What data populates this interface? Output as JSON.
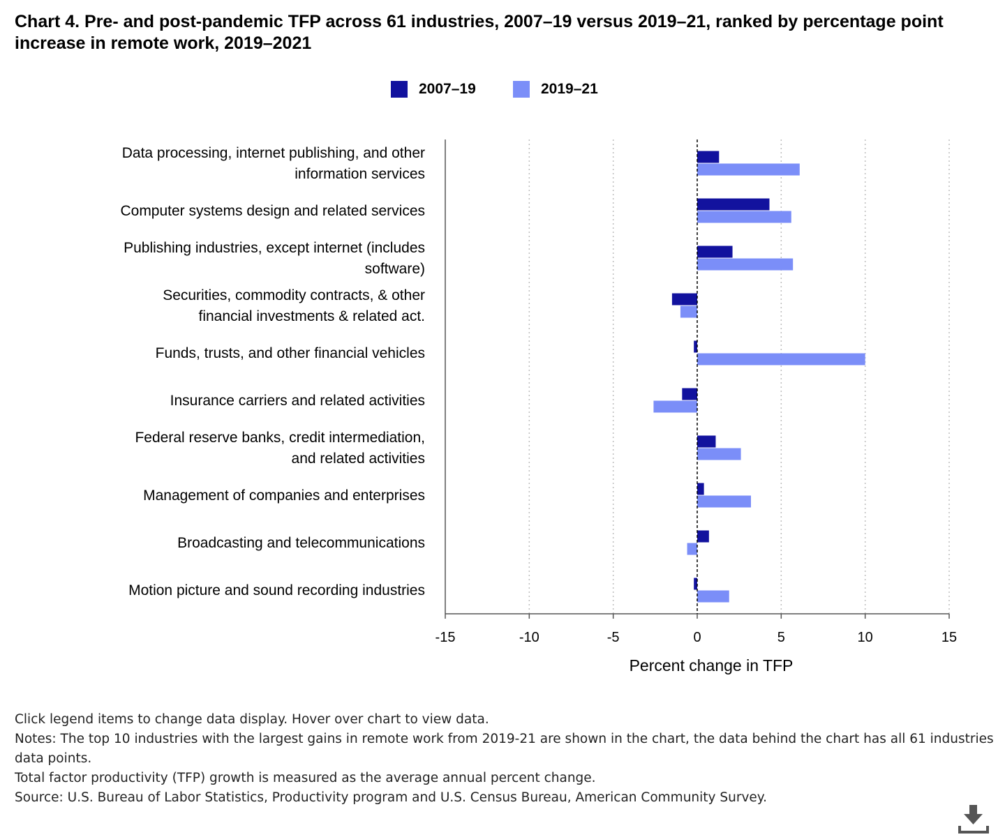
{
  "title": "Chart 4. Pre- and post-pandemic TFP across 61 industries, 2007–19 versus 2019–21, ranked by percentage point increase in remote work, 2019–2021",
  "legend": [
    {
      "label": "2007–19",
      "color": "#12129e"
    },
    {
      "label": "2019–21",
      "color": "#7b8ef8"
    }
  ],
  "chart_data": {
    "type": "bar",
    "orientation": "horizontal",
    "categories": [
      [
        "Data processing, internet publishing, and other",
        "information services"
      ],
      [
        "Computer systems design and related services"
      ],
      [
        "Publishing industries, except internet (includes",
        "software)"
      ],
      [
        "Securities, commodity contracts, & other",
        "financial investments & related act."
      ],
      [
        "Funds, trusts, and other financial vehicles"
      ],
      [
        "Insurance carriers and related activities"
      ],
      [
        "Federal reserve banks, credit intermediation,",
        "and related activities"
      ],
      [
        "Management of companies and enterprises"
      ],
      [
        "Broadcasting and telecommunications"
      ],
      [
        "Motion picture and sound recording industries"
      ]
    ],
    "series": [
      {
        "name": "2007–19",
        "color": "#12129e",
        "values": [
          1.3,
          4.3,
          2.1,
          -1.5,
          -0.2,
          -0.9,
          1.1,
          0.4,
          0.7,
          -0.2
        ]
      },
      {
        "name": "2019–21",
        "color": "#7b8ef8",
        "values": [
          6.1,
          5.6,
          5.7,
          -1.0,
          10.0,
          -2.6,
          2.6,
          3.2,
          -0.6,
          1.9
        ]
      }
    ],
    "xlabel": "Percent change in TFP",
    "xlim": [
      -15,
      15
    ],
    "xticks": [
      -15,
      -10,
      -5,
      0,
      5,
      10,
      15
    ],
    "grid": "vertical dotted",
    "legend_position": "top-center"
  },
  "notes": [
    "Click legend items to change data display. Hover over chart to view data.",
    "Notes: The top 10 industries with the largest gains in remote work from 2019-21 are shown in the chart, the data behind the chart has all 61 industries data points.",
    "Total factor productivity (TFP) growth is measured as the average annual percent change.",
    "Source: U.S. Bureau of Labor Statistics, Productivity program and U.S. Census Bureau, American Community Survey."
  ],
  "download_icon": "download-icon"
}
